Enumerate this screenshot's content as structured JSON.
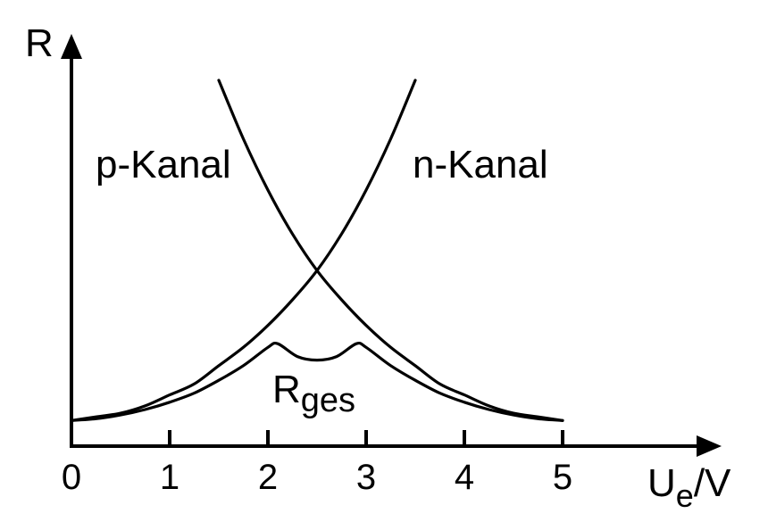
{
  "chart_data": {
    "type": "line",
    "title": "",
    "xlabel": "U",
    "xlabel_sub": "e",
    "xlabel_unit": "/V",
    "ylabel": "R",
    "xlim": [
      0,
      5.7
    ],
    "ylim": [
      0,
      1.0
    ],
    "x_ticks": [
      "0",
      "1",
      "2",
      "3",
      "4",
      "5"
    ],
    "grid": false,
    "legend": "none",
    "series": [
      {
        "name": "p-Kanal",
        "x": [
          1.5,
          1.75,
          2.0,
          2.25,
          2.5,
          2.75,
          3.0,
          3.25,
          3.5,
          3.75,
          4.0,
          4.25,
          4.5,
          4.75,
          5.0
        ],
        "y": [
          1.0,
          0.84,
          0.7,
          0.58,
          0.48,
          0.4,
          0.33,
          0.27,
          0.22,
          0.17,
          0.14,
          0.11,
          0.09,
          0.08,
          0.07
        ]
      },
      {
        "name": "n-Kanal",
        "x": [
          0.0,
          0.25,
          0.5,
          0.75,
          1.0,
          1.25,
          1.5,
          1.75,
          2.0,
          2.25,
          2.5,
          2.75,
          3.0,
          3.25,
          3.5
        ],
        "y": [
          0.07,
          0.08,
          0.09,
          0.11,
          0.14,
          0.17,
          0.22,
          0.27,
          0.33,
          0.4,
          0.48,
          0.58,
          0.7,
          0.84,
          1.0
        ]
      },
      {
        "name": "R",
        "name_sub": "ges",
        "x": [
          0.0,
          0.25,
          0.5,
          0.75,
          1.0,
          1.25,
          1.5,
          1.75,
          2.0,
          2.1,
          2.3,
          2.5,
          2.7,
          2.9,
          3.0,
          3.25,
          3.5,
          3.75,
          4.0,
          4.25,
          4.5,
          4.75,
          5.0
        ],
        "y": [
          0.07,
          0.075,
          0.085,
          0.1,
          0.12,
          0.145,
          0.18,
          0.22,
          0.27,
          0.28,
          0.245,
          0.235,
          0.245,
          0.28,
          0.27,
          0.22,
          0.18,
          0.145,
          0.12,
          0.1,
          0.085,
          0.075,
          0.07
        ]
      }
    ]
  }
}
